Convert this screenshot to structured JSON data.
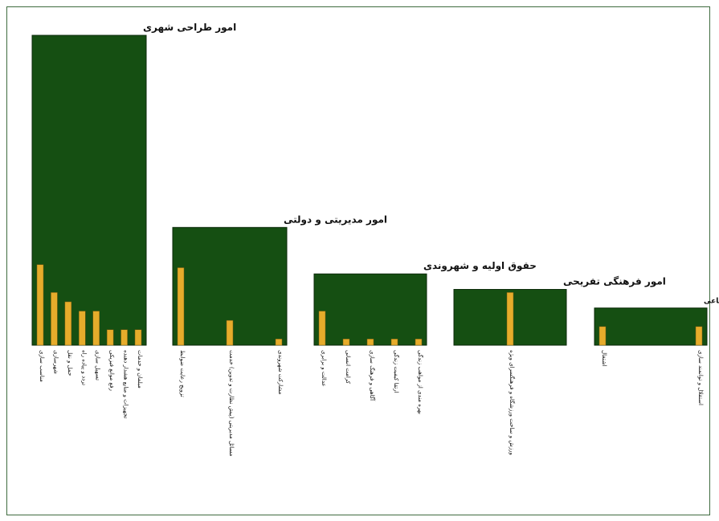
{
  "chart_data": {
    "type": "bar",
    "description_note": "",
    "colors": {
      "group_box": "#154f12",
      "bar": "#e6ac2b",
      "frame": "#3f6b3f",
      "text": "#111111"
    },
    "groups": [
      {
        "title": "امور طراحی شهری",
        "total": 100,
        "items": [
          {
            "label": "مناسب سازی",
            "value": 26
          },
          {
            "label": "شهرسازی",
            "value": 17
          },
          {
            "label": "حمل و نقل",
            "value": 14
          },
          {
            "label": "تردد و پیاده راه",
            "value": 11
          },
          {
            "label": "تسهیل سازی",
            "value": 11
          },
          {
            "label": "رفع موانع فیزیکی",
            "value": 5
          },
          {
            "label": "تجهیزات و منابع هشدار دهنده",
            "value": 5
          },
          {
            "label": "مبلمان و خدمات",
            "value": 5
          }
        ]
      },
      {
        "title": "امور مدیریتی و دولتی",
        "total": 38,
        "items": [
          {
            "label": "تزویج رعایت ضوابط",
            "value": 25
          },
          {
            "label": "مسائل مدیریتی (پیش نظارت و تدوین) خدمت",
            "value": 8
          },
          {
            "label": "مشارکت شهروندی",
            "value": 2
          }
        ]
      },
      {
        "title": "حقوق اولیه و شهروندی",
        "total": 23,
        "items": [
          {
            "label": "عدالت و برابری",
            "value": 11
          },
          {
            "label": "کرامت انسانی",
            "value": 2
          },
          {
            "label": "آگاهی و فرهنگ سازی",
            "value": 2
          },
          {
            "label": "ارتقا کیفیت زندگی",
            "value": 2
          },
          {
            "label": "بهره مندی از مواهب زندگی",
            "value": 2
          }
        ]
      },
      {
        "title": "امور فرهنگی تفریحی",
        "total": 18,
        "items": [
          {
            "label": "ورزش و ساخت ورزشگاه و فرهنگسرای ویژه",
            "value": 17
          }
        ]
      },
      {
        "title": "امور رشد فردی اجتماعی",
        "total": 12,
        "items": [
          {
            "label": "اشتغال",
            "value": 6
          },
          {
            "label": "استقلال و توانمند سازی",
            "value": 6
          }
        ]
      }
    ],
    "ylim": [
      0,
      100
    ]
  }
}
